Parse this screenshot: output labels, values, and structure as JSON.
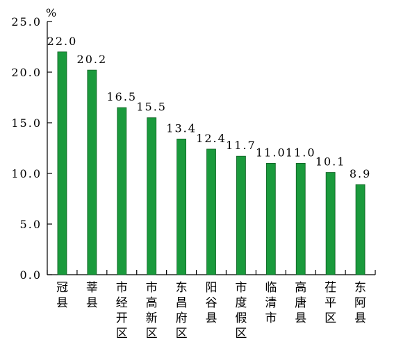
{
  "chart_data": {
    "type": "bar",
    "unit": "%",
    "categories": [
      "冠县",
      "莘县",
      "市经开区",
      "市高新区",
      "东昌府区",
      "阳谷县",
      "市度假区",
      "临清市",
      "高唐县",
      "茌平区",
      "东阿县"
    ],
    "values": [
      22.0,
      20.2,
      16.5,
      15.5,
      13.4,
      12.4,
      11.7,
      11.0,
      11.0,
      10.1,
      8.9
    ],
    "value_labels": [
      "22.0",
      "20.2",
      "16.5",
      "15.5",
      "13.4",
      "12.4",
      "11.7",
      "11.0",
      "11.0",
      "10.1",
      "8.9"
    ],
    "yticks": [
      "0.0",
      "5.0",
      "10.0",
      "15.0",
      "20.0",
      "25.0"
    ],
    "ylim": [
      0,
      25
    ],
    "bar_color": "#1a9a3c",
    "grid": false,
    "legend": "none"
  }
}
